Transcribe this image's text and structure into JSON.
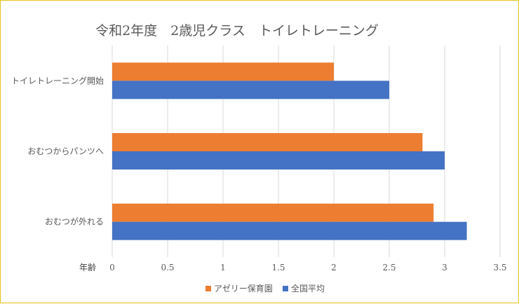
{
  "chart_data": {
    "type": "bar",
    "orientation": "horizontal",
    "title": "令和2年度　2歳児クラス　トイレトレーニング",
    "xlabel": "年齢",
    "ylabel": "",
    "xlim": [
      0,
      3.5
    ],
    "x_ticks": [
      0,
      0.5,
      1,
      1.5,
      2,
      2.5,
      3,
      3.5
    ],
    "x_tick_labels": [
      "0",
      "0.5",
      "1",
      "1.5",
      "2",
      "2.5",
      "3",
      "3.5"
    ],
    "grid": true,
    "legend_position": "bottom",
    "categories": [
      "トイレトレーニング開始",
      "おむつからパンツへ",
      "おむつが外れる"
    ],
    "series": [
      {
        "name": "アゼリー保育園",
        "color": "#ed7d31",
        "values": [
          2.0,
          2.8,
          2.9
        ]
      },
      {
        "name": "全国平均",
        "color": "#4472c4",
        "values": [
          2.5,
          3.0,
          3.2
        ]
      }
    ]
  }
}
